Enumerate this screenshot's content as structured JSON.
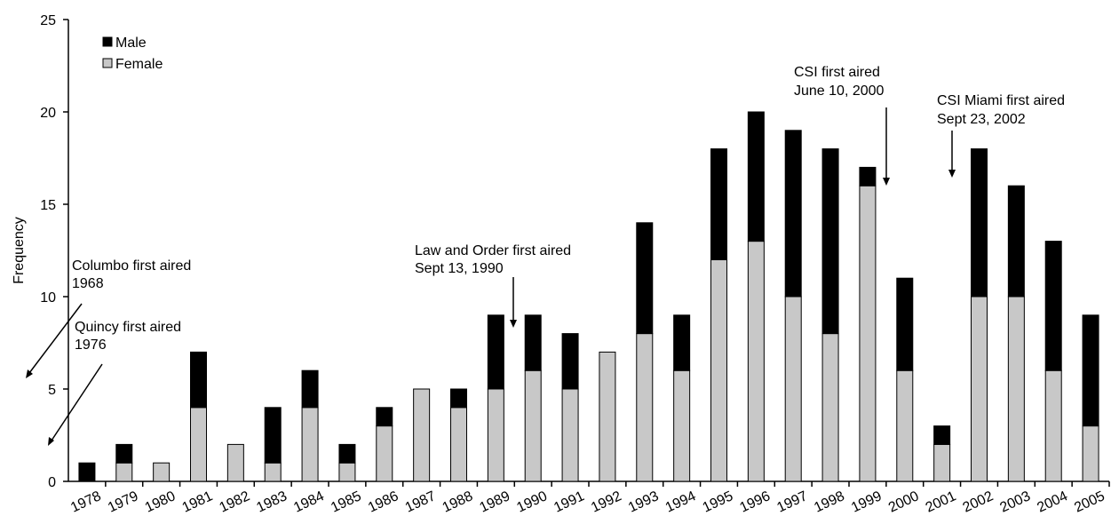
{
  "chart_data": {
    "type": "bar",
    "stacked": true,
    "title": "",
    "xlabel": "",
    "ylabel": "Frequency",
    "ylim": [
      0,
      25
    ],
    "yticks": [
      0,
      5,
      10,
      15,
      20,
      25
    ],
    "grid": false,
    "legend_position": "top-left",
    "categories": [
      "1978",
      "1979",
      "1980",
      "1981",
      "1982",
      "1983",
      "1984",
      "1985",
      "1986",
      "1987",
      "1988",
      "1989",
      "1990",
      "1991",
      "1992",
      "1993",
      "1994",
      "1995",
      "1996",
      "1997",
      "1998",
      "1999",
      "2000",
      "2001",
      "2002",
      "2003",
      "2004",
      "2005"
    ],
    "series": [
      {
        "name": "Female",
        "color": "#c8c8c8",
        "values": [
          0,
          1,
          1,
          4,
          2,
          1,
          4,
          1,
          3,
          5,
          4,
          5,
          6,
          5,
          7,
          8,
          6,
          12,
          13,
          10,
          8,
          16,
          6,
          2,
          10,
          10,
          6,
          3
        ]
      },
      {
        "name": "Male",
        "color": "#000000",
        "values": [
          1,
          1,
          0,
          3,
          0,
          3,
          2,
          1,
          1,
          0,
          1,
          4,
          3,
          3,
          0,
          6,
          3,
          6,
          7,
          9,
          10,
          1,
          5,
          1,
          8,
          6,
          7,
          6
        ]
      }
    ],
    "annotations": [
      {
        "id": "columbo",
        "lines": [
          "Columbo first aired",
          "1968"
        ]
      },
      {
        "id": "quincy",
        "lines": [
          "Quincy first aired",
          "1976"
        ]
      },
      {
        "id": "law-order",
        "lines": [
          "Law and Order first aired",
          "Sept 13, 1990"
        ]
      },
      {
        "id": "csi",
        "lines": [
          "CSI first aired",
          "June 10, 2000"
        ]
      },
      {
        "id": "csi-miami",
        "lines": [
          "CSI Miami first aired",
          "Sept 23, 2002"
        ]
      }
    ]
  }
}
